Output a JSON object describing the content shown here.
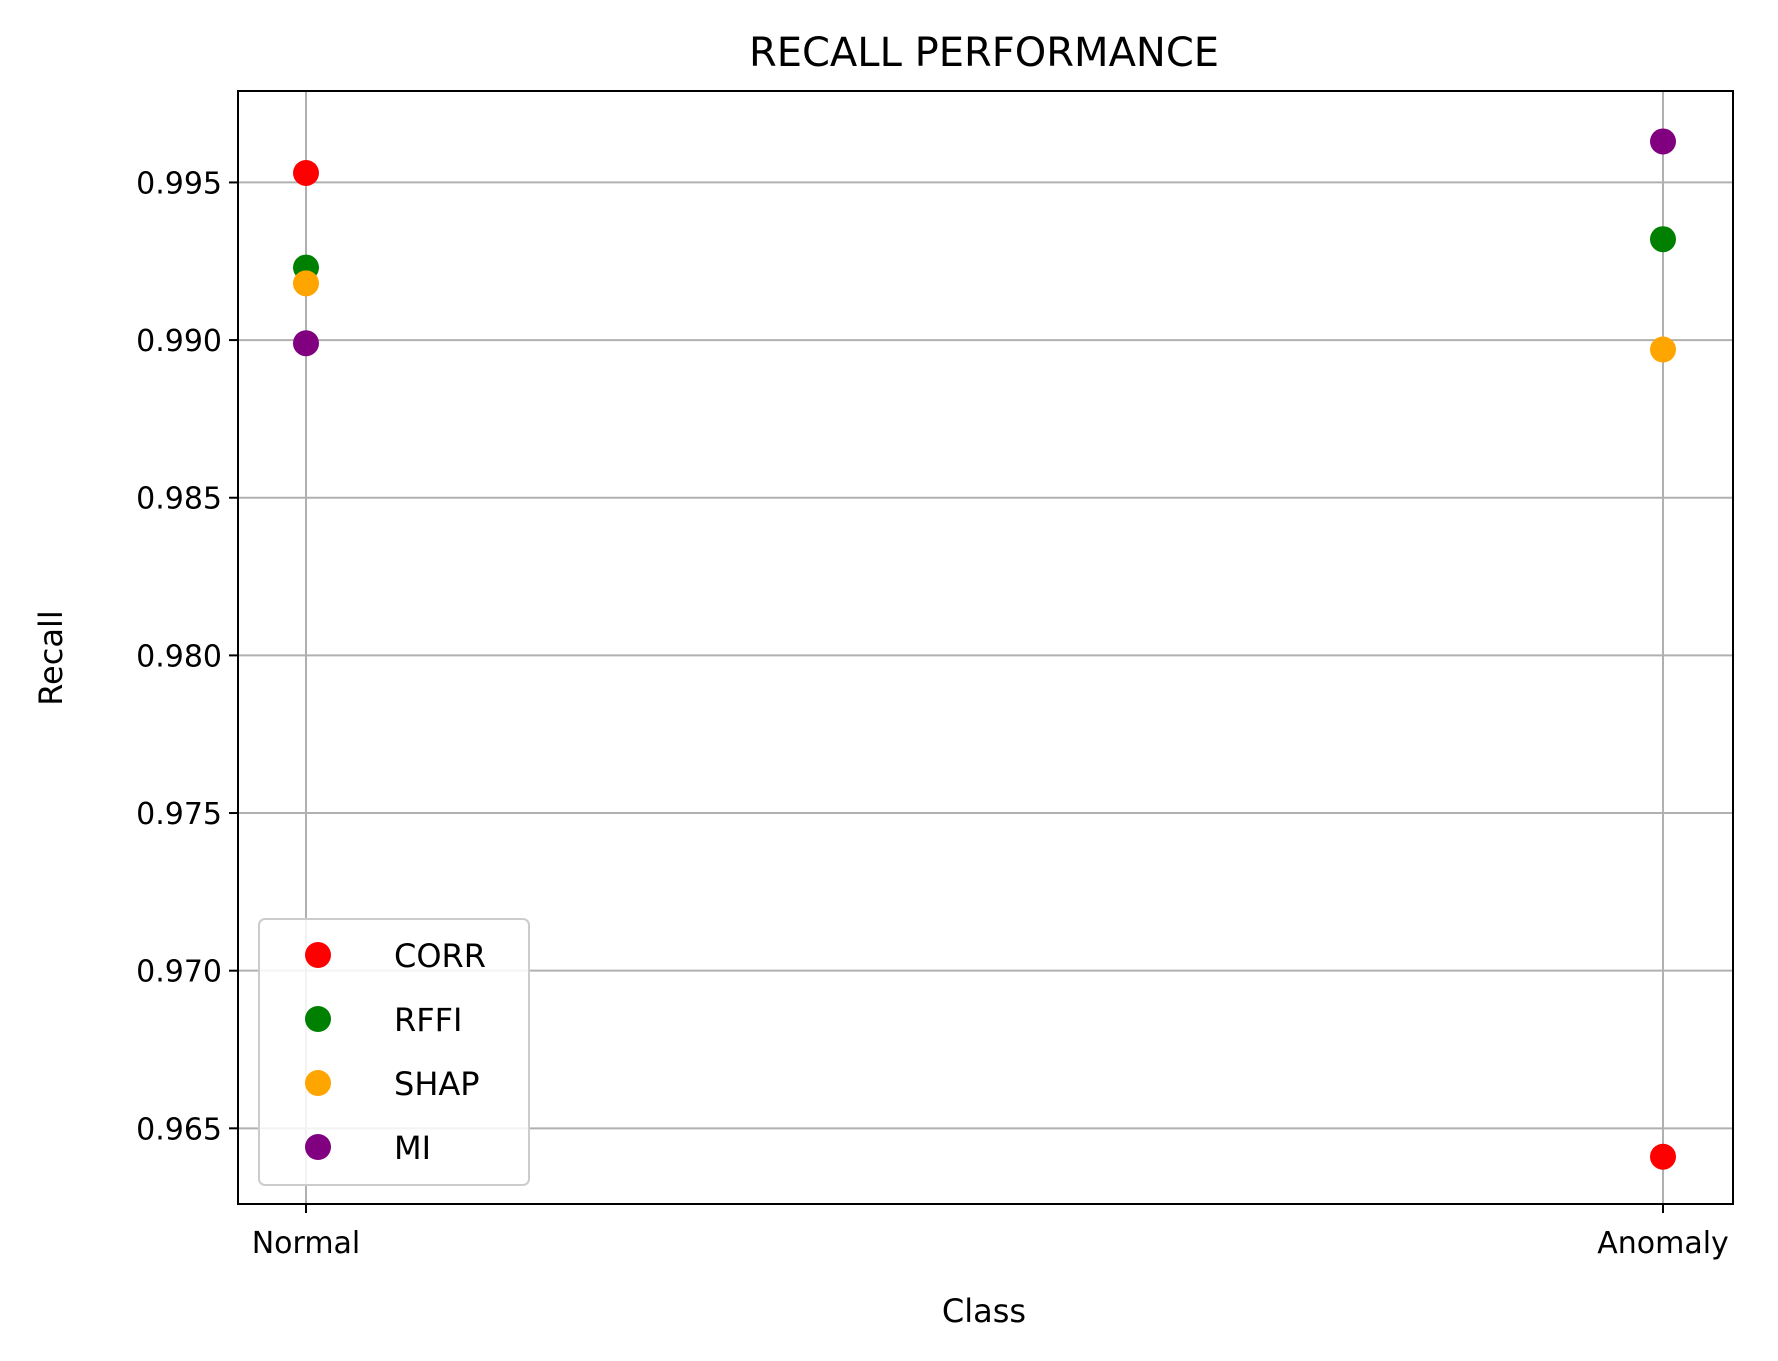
{
  "chart_data": {
    "type": "scatter",
    "title": "RECALL PERFORMANCE",
    "xlabel": "Class",
    "ylabel": "Recall",
    "categories": [
      "Normal",
      "Anomaly"
    ],
    "ylim": [
      0.9626,
      0.9979
    ],
    "yticks": [
      "0.965",
      "0.970",
      "0.975",
      "0.980",
      "0.985",
      "0.990",
      "0.995"
    ],
    "grid": true,
    "legend_position": "lower-left",
    "series": [
      {
        "name": "CORR",
        "color": "#ff0000",
        "values": [
          0.9953,
          0.9641
        ]
      },
      {
        "name": "RFFI",
        "color": "#008000",
        "values": [
          0.9923,
          0.9932
        ]
      },
      {
        "name": "SHAP",
        "color": "#ffa500",
        "values": [
          0.9918,
          0.9897
        ]
      },
      {
        "name": "MI",
        "color": "#800080",
        "values": [
          0.9899,
          0.9963
        ]
      }
    ]
  }
}
